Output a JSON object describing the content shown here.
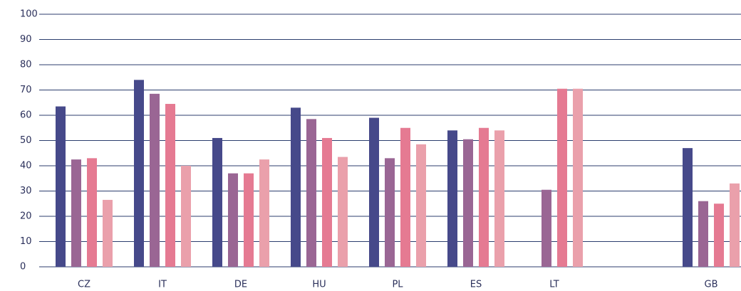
{
  "chart_data": {
    "type": "bar",
    "categories": [
      "CZ",
      "IT",
      "DE",
      "HU",
      "PL",
      "ES",
      "LT",
      null,
      "GB"
    ],
    "series": [
      {
        "color": "#46498a",
        "values": [
          63.5,
          74,
          51,
          63,
          59,
          54,
          null,
          null,
          47
        ]
      },
      {
        "color": "#9a6694",
        "values": [
          42.5,
          68.5,
          37,
          58.5,
          43,
          50.5,
          30.5,
          null,
          26
        ]
      },
      {
        "color": "#e57a92",
        "values": [
          43,
          64.5,
          37,
          51,
          55,
          55,
          70.5,
          null,
          25
        ]
      },
      {
        "color": "#eaa0ab",
        "values": [
          26.5,
          40,
          42.5,
          43.5,
          48.5,
          54,
          70.5,
          null,
          33
        ]
      }
    ],
    "ylim": [
      0,
      100
    ],
    "yticks": [
      0,
      10,
      20,
      30,
      40,
      50,
      60,
      70,
      80,
      90,
      100
    ],
    "grid": true
  }
}
